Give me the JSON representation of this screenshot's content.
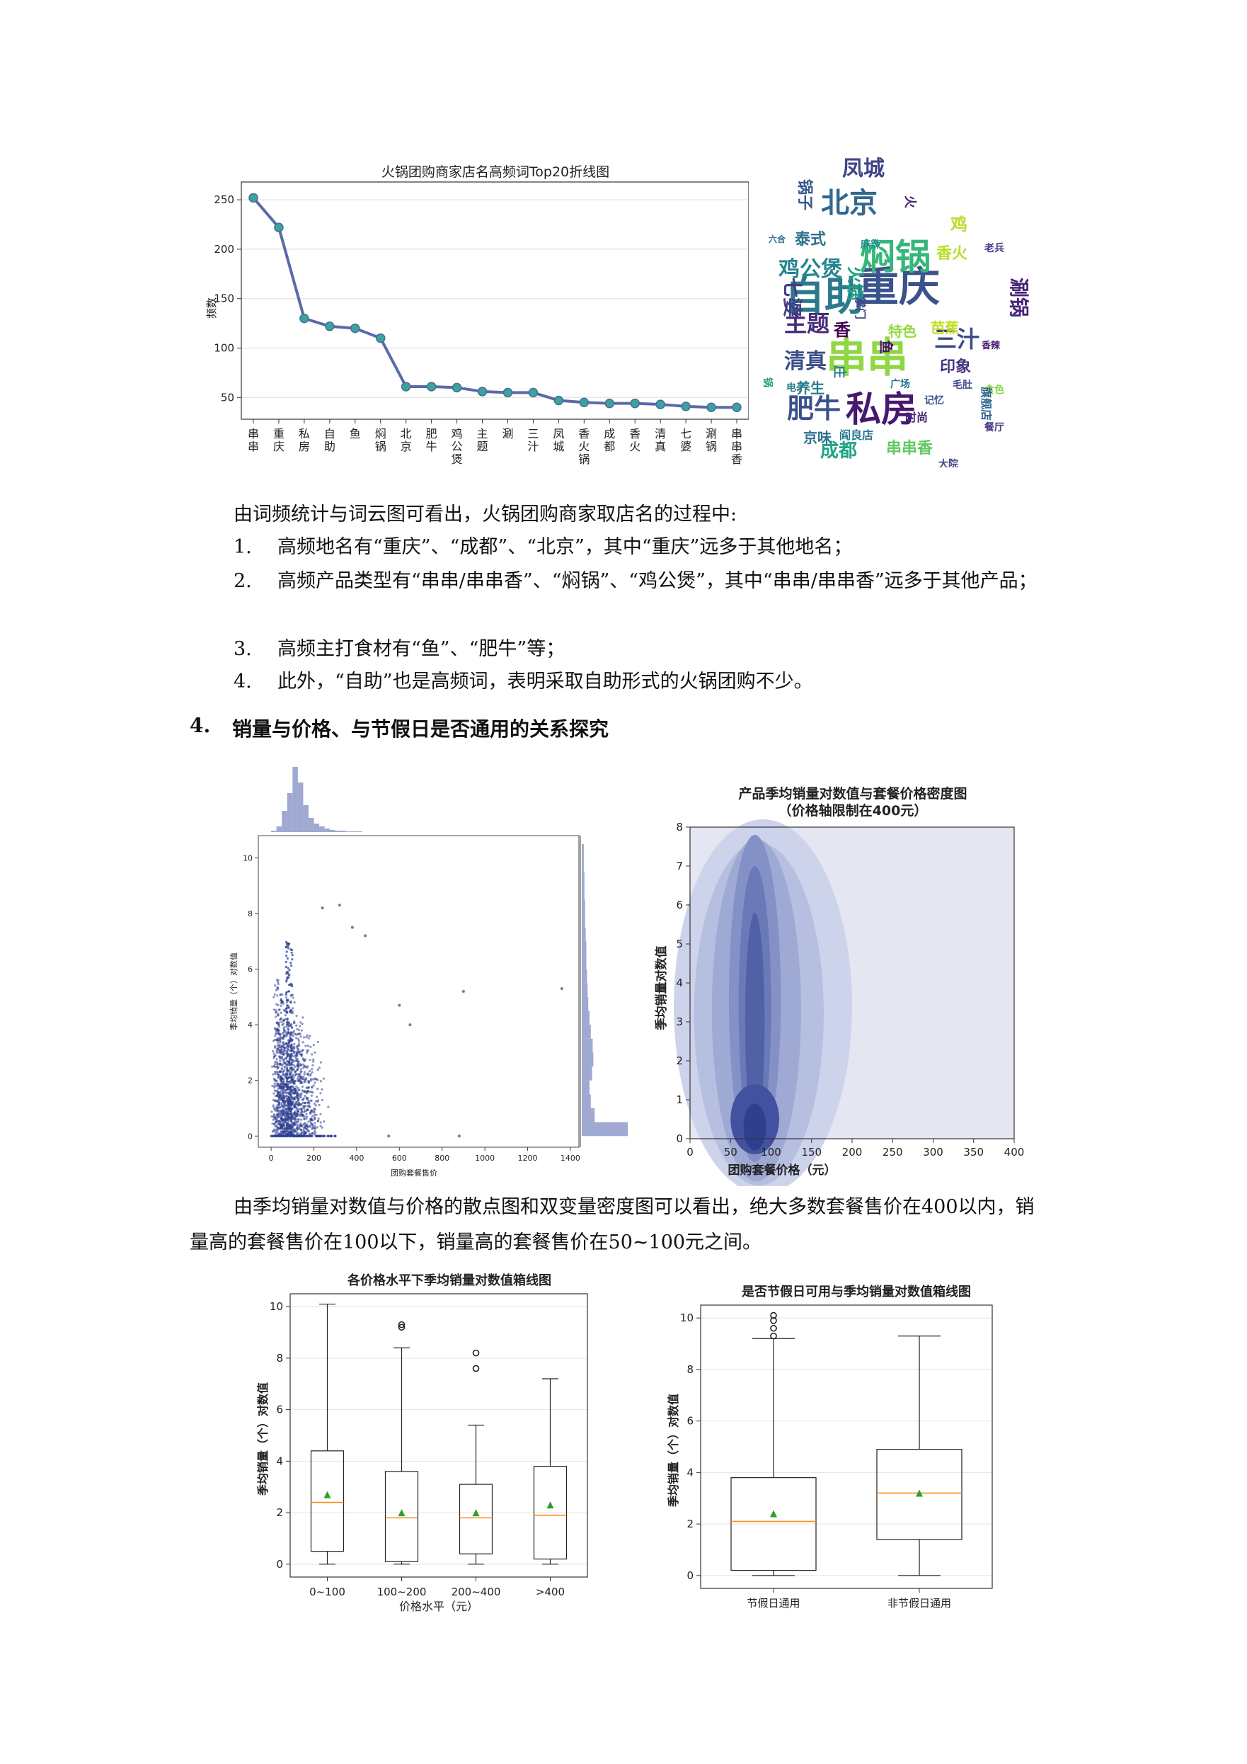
{
  "linechart": {
    "type": "line",
    "title": "火锅团购商家店名高频词Top20折线图",
    "ylabel": "频数",
    "categories": [
      "串串",
      "重庆",
      "私房",
      "自助",
      "鱼",
      "焖锅",
      "北京",
      "肥牛",
      "鸡公煲",
      "主题",
      "涮",
      "三汁",
      "凤城",
      "香火锅",
      "成都",
      "香火",
      "清真",
      "七婆",
      "涮锅",
      "串串香"
    ],
    "values": [
      252,
      222,
      130,
      122,
      120,
      110,
      61,
      61,
      60,
      56,
      55,
      55,
      47,
      45,
      44,
      44,
      43,
      41,
      40,
      40
    ],
    "yticks": [
      "50",
      "100",
      "150",
      "200",
      "250"
    ],
    "ylim": [
      28,
      268
    ]
  },
  "wordcloud": [
    {
      "w": "重庆",
      "c": "#3b538b"
    },
    {
      "w": "自助",
      "c": "#2a7a8c"
    },
    {
      "w": "串串",
      "c": "#8fd744"
    },
    {
      "w": "私房",
      "c": "#47186f"
    },
    {
      "w": "焖锅",
      "c": "#35b779"
    },
    {
      "w": "北京",
      "c": "#31688e"
    },
    {
      "w": "肥牛",
      "c": "#3c508b"
    },
    {
      "w": "鸡公煲",
      "c": "#25858e"
    },
    {
      "w": "主题",
      "c": "#472c7a"
    },
    {
      "w": "清真",
      "c": "#3c4f8a"
    },
    {
      "w": "凤城",
      "c": "#414487"
    },
    {
      "w": "七婆",
      "c": "#433e85"
    },
    {
      "w": "成都",
      "c": "#20a386"
    },
    {
      "w": "串串香",
      "c": "#5ec962"
    },
    {
      "w": "三汁",
      "c": "#3e4a89"
    },
    {
      "w": "涮锅",
      "c": "#482576"
    },
    {
      "w": "印象",
      "c": "#46337f"
    },
    {
      "w": "香火",
      "c": "#b8de29"
    },
    {
      "w": "泰式",
      "c": "#2c718e"
    },
    {
      "w": "火锅",
      "c": "#1f9f88"
    },
    {
      "w": "香",
      "c": "#440154"
    },
    {
      "w": "芭蕉",
      "c": "#c2df23"
    },
    {
      "w": "特色",
      "c": "#95d840"
    },
    {
      "w": "养生",
      "c": "#287d8e"
    },
    {
      "w": "鱼",
      "c": "#481467"
    },
    {
      "w": "京味",
      "c": "#2d708e"
    },
    {
      "w": "锅子",
      "c": "#38598c"
    },
    {
      "w": "掌门",
      "c": "#3f4889"
    },
    {
      "w": "餐厅",
      "c": "#453882"
    },
    {
      "w": "老兵",
      "c": "#443983"
    },
    {
      "w": "食色",
      "c": "#8bd646"
    },
    {
      "w": "香辣",
      "c": "#481b6d"
    },
    {
      "w": "庄",
      "c": "#26828e"
    },
    {
      "w": "阎良店",
      "c": "#297a8e"
    },
    {
      "w": "麻辣",
      "c": "#21918c"
    },
    {
      "w": "广场",
      "c": "#2c738e"
    },
    {
      "w": "记忆",
      "c": "#3b528b"
    },
    {
      "w": "时尚",
      "c": "#482878"
    },
    {
      "w": "电子",
      "c": "#277f8e"
    },
    {
      "w": "毛肚",
      "c": "#3d4d8a"
    },
    {
      "w": "鸡",
      "c": "#b5de2b"
    },
    {
      "w": "六合",
      "c": "#2e6e8e"
    },
    {
      "w": "旗舰店",
      "c": "#31668e"
    },
    {
      "w": "火",
      "c": "#482173"
    },
    {
      "w": "大院",
      "c": "#404387"
    },
    {
      "w": "锅",
      "c": "#1e9c89"
    }
  ],
  "intro_text": "由词频统计与词云图可看出，火锅团购商家取店名的过程中:",
  "findings": [
    {
      "num": "1.",
      "text": "高频地名有“重庆”、“成都”、“北京”，其中“重庆”远多于其他地名；"
    },
    {
      "num": "2.",
      "text": "高频产品类型有“串串/串串香”、“焖锅”、“鸡公煲”，其中“串串/串串香”远多于其他产品；"
    },
    {
      "num": "3.",
      "text": "高频主打食材有“鱼”、“肥牛”等；"
    },
    {
      "num": "4.",
      "text": "此外，“自助”也是高频词，表明采取自助形式的火锅团购不少。"
    }
  ],
  "section": {
    "num": "4.",
    "title": "销量与价格、与节假日是否通用的关系探究"
  },
  "scatter": {
    "type": "scatter",
    "xlabel": "团购套餐售价",
    "ylabel": "季均销量（个）对数值",
    "xticks": [
      "0",
      "200",
      "400",
      "600",
      "800",
      "1000",
      "1200",
      "1400"
    ],
    "yticks": [
      "0",
      "2",
      "4",
      "6",
      "8",
      "10"
    ],
    "xlim": [
      -60,
      1440
    ],
    "ylim": [
      -0.4,
      10.8
    ],
    "outliers": [
      [
        1360,
        5.3
      ],
      [
        900,
        5.2
      ],
      [
        880,
        0
      ],
      [
        600,
        4.7
      ],
      [
        550,
        0
      ],
      [
        650,
        4.0
      ],
      [
        440,
        7.2
      ],
      [
        380,
        7.5
      ],
      [
        320,
        8.3
      ],
      [
        240,
        8.2
      ]
    ]
  },
  "density": {
    "type": "heatmap",
    "title": "产品季均销量对数值与套餐价格密度图",
    "subtitle": "（价格轴限制在400元）",
    "xlabel": "团购套餐价格（元）",
    "ylabel": "季均销量对数值",
    "xticks": [
      "0",
      "50",
      "100",
      "150",
      "200",
      "250",
      "300",
      "350",
      "400"
    ],
    "yticks": [
      "0",
      "1",
      "2",
      "3",
      "4",
      "5",
      "6",
      "7",
      "8"
    ],
    "xlim": [
      0,
      400
    ],
    "ylim": [
      0,
      8
    ]
  },
  "conclusion_text": "由季均销量对数值与价格的散点图和双变量密度图可以看出，绝大多数套餐售价在400以内，销量高的套餐售价在100以下，销量高的套餐售价在50~100元之间。",
  "box_price": {
    "type": "box",
    "title": "各价格水平下季均销量对数值箱线图",
    "xlabel": "价格水平（元）",
    "ylabel": "季均销量（个）对数值",
    "categories": [
      "0~100",
      "100~200",
      "200~400",
      ">400"
    ],
    "yticks": [
      "0",
      "2",
      "4",
      "6",
      "8",
      "10"
    ],
    "ylim": [
      -0.5,
      10.5
    ],
    "boxes": [
      {
        "min": 0,
        "q1": 0.5,
        "median": 2.4,
        "q3": 4.4,
        "max": 10.1,
        "mean": 2.7,
        "outliers": []
      },
      {
        "min": 0,
        "q1": 0.1,
        "median": 1.8,
        "q3": 3.6,
        "max": 8.4,
        "mean": 2.0,
        "outliers": [
          9.2,
          9.3
        ]
      },
      {
        "min": 0,
        "q1": 0.4,
        "median": 1.8,
        "q3": 3.1,
        "max": 5.4,
        "mean": 2.0,
        "outliers": [
          7.6,
          8.2
        ]
      },
      {
        "min": 0,
        "q1": 0.2,
        "median": 1.9,
        "q3": 3.8,
        "max": 7.2,
        "mean": 2.3,
        "outliers": []
      }
    ]
  },
  "box_holiday": {
    "type": "box",
    "title": "是否节假日可用与季均销量对数值箱线图",
    "ylabel": "季均销量（个）对数值",
    "categories": [
      "节假日通用",
      "非节假日通用"
    ],
    "yticks": [
      "0",
      "2",
      "4",
      "6",
      "8",
      "10"
    ],
    "ylim": [
      -0.5,
      10.5
    ],
    "boxes": [
      {
        "min": 0,
        "q1": 0.2,
        "median": 2.1,
        "q3": 3.8,
        "max": 9.2,
        "mean": 2.4,
        "outliers": [
          9.3,
          9.6,
          9.9,
          10.1
        ]
      },
      {
        "min": 0,
        "q1": 1.4,
        "median": 3.2,
        "q3": 4.9,
        "max": 9.3,
        "mean": 3.2,
        "outliers": []
      }
    ]
  }
}
